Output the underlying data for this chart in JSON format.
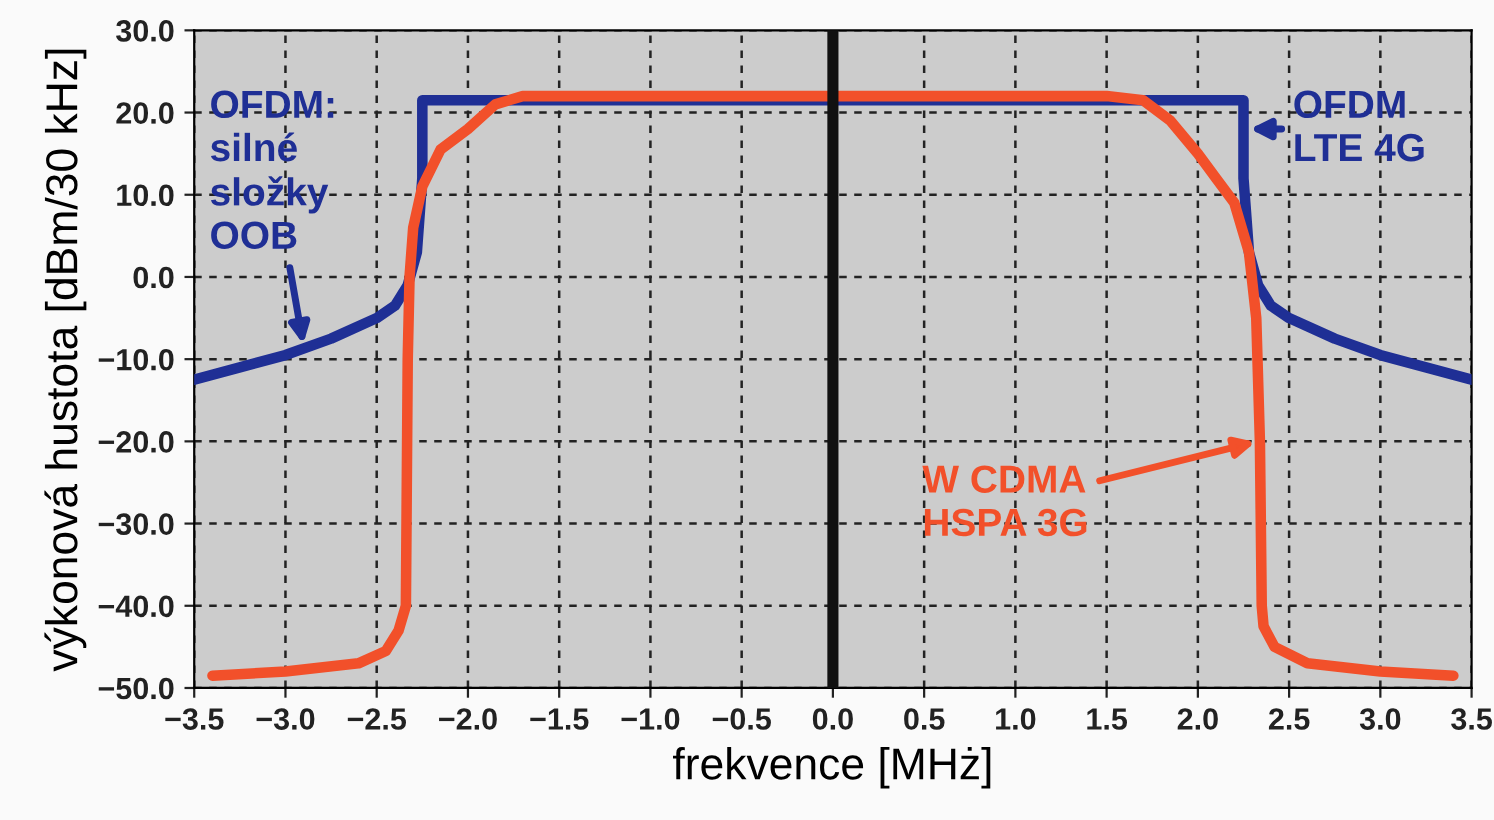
{
  "chart_data": {
    "type": "line",
    "xlabel": "frekvence [MHż]",
    "ylabel": "výkonová hustota [dBm/30 kHz]",
    "xlim": [
      -3.5,
      3.5
    ],
    "ylim": [
      -50,
      30
    ],
    "xticks": [
      {
        "value": -3.5,
        "label": "−3.5"
      },
      {
        "value": -3.0,
        "label": "−3.0"
      },
      {
        "value": -2.5,
        "label": "−2.5"
      },
      {
        "value": -2.0,
        "label": "−2.0"
      },
      {
        "value": -1.5,
        "label": "−1.5"
      },
      {
        "value": -1.0,
        "label": "−1.0"
      },
      {
        "value": -0.5,
        "label": "−0.5"
      },
      {
        "value": 0,
        "label": "0.0"
      },
      {
        "value": 0.5,
        "label": "0.5"
      },
      {
        "value": 1.0,
        "label": "1.0"
      },
      {
        "value": 1.5,
        "label": "1.5"
      },
      {
        "value": 2.0,
        "label": "2.0"
      },
      {
        "value": 2.5,
        "label": "2.5"
      },
      {
        "value": 3.0,
        "label": "3.0"
      },
      {
        "value": 3.5,
        "label": "3.5"
      }
    ],
    "yticks": [
      {
        "value": -50,
        "label": "−50.0"
      },
      {
        "value": -40,
        "label": "−40.0"
      },
      {
        "value": -30,
        "label": "−30.0"
      },
      {
        "value": -20,
        "label": "−20.0"
      },
      {
        "value": -10,
        "label": "−10.0"
      },
      {
        "value": 0,
        "label": "0.0"
      },
      {
        "value": 10,
        "label": "10.0"
      },
      {
        "value": 20,
        "label": "20.0"
      },
      {
        "value": 30,
        "label": "30.0"
      }
    ],
    "grid": true,
    "legend": false,
    "marker": "none",
    "line_style": "solid",
    "ref_lines": [
      {
        "axis": "x",
        "value": 0,
        "label": null,
        "color": "#111111"
      }
    ],
    "series": [
      {
        "color": "#1f2f95",
        "x": [
          -3.5,
          -3.25,
          -3.0,
          -2.75,
          -2.5,
          -2.4,
          -2.33,
          -2.28,
          -2.26,
          -2.25,
          -2.25,
          -1.0,
          0,
          1.0,
          2.25,
          2.25,
          2.26,
          2.28,
          2.33,
          2.4,
          2.5,
          2.75,
          3.0,
          3.25,
          3.5
        ],
        "values": [
          -12.5,
          -11,
          -9.5,
          -7.5,
          -5,
          -3.5,
          -1,
          3,
          9,
          12,
          21.5,
          21.5,
          21.5,
          21.5,
          21.5,
          12,
          9,
          3,
          -1,
          -3.5,
          -5,
          -7.5,
          -9.5,
          -11,
          -12.5
        ]
      },
      {
        "color": "#f2502a",
        "x": [
          -3.4,
          -3.0,
          -2.6,
          -2.45,
          -2.38,
          -2.34,
          -2.33,
          -2.32,
          -2.3,
          -2.25,
          -2.15,
          -2.0,
          -1.85,
          -1.7,
          -1.5,
          0,
          1.5,
          1.7,
          1.85,
          2.0,
          2.1,
          2.2,
          2.28,
          2.32,
          2.34,
          2.35,
          2.36,
          2.42,
          2.6,
          3.0,
          3.4
        ],
        "values": [
          -48.5,
          -48,
          -47,
          -45.5,
          -43,
          -40,
          -10,
          0,
          6,
          11,
          15.5,
          18,
          21,
          22,
          22,
          22,
          22,
          21.5,
          19,
          15,
          12,
          9,
          3,
          -5,
          -20,
          -40,
          -42.5,
          -45,
          -47,
          -48,
          -48.5
        ]
      }
    ],
    "annotations": [
      {
        "text": "OFDM:\nsilné\nsložky\nOOB",
        "x": -2.9,
        "y": -8.5
      },
      {
        "text": "OFDM\nLTE 4G",
        "x": 2.27,
        "y": 18
      },
      {
        "text": "W CDMA\nHSPA 3G",
        "x": 2.33,
        "y": -20
      }
    ]
  }
}
